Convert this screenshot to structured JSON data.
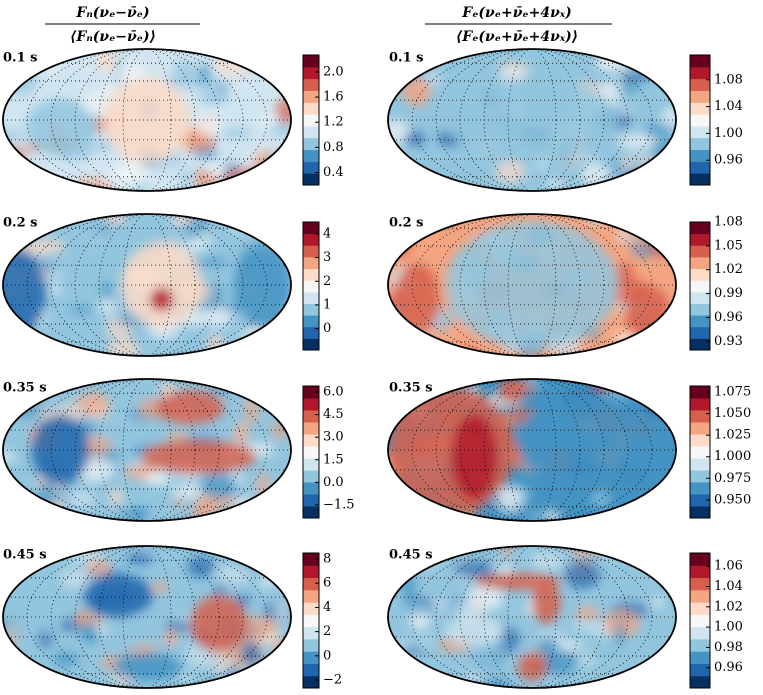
{
  "column_titles": [
    {
      "numerator": "Fₙ(νₑ−ν̄ₑ)",
      "denominator": "⟨Fₙ(νₑ−ν̄ₑ)⟩"
    },
    {
      "numerator": "Fₑ(νₑ+ν̄ₑ+4νₓ)",
      "denominator": "⟨Fₑ(νₑ+ν̄ₑ+4νₓ)⟩"
    }
  ],
  "chart_data": [
    {
      "type": "map",
      "label": "0.1 s",
      "clim": [
        0.2,
        2.27
      ],
      "cticks": [
        0.4,
        0.8,
        1.2,
        1.6,
        {
          "value": 2,
          "label": "2.0"
        }
      ]
    },
    {
      "type": "map",
      "label": "0.1 s",
      "clim": [
        0.923,
        1.117
      ],
      "cticks": [
        0.96,
        {
          "value": 1,
          "label": "1.00"
        },
        1.04,
        1.08
      ]
    },
    {
      "type": "map",
      "label": "0.2 s",
      "clim": [
        -0.9,
        4.5
      ],
      "cticks": [
        0,
        1,
        2,
        3,
        4
      ]
    },
    {
      "type": "map",
      "label": "0.2 s",
      "clim": [
        0.919,
        1.08
      ],
      "cticks": [
        0.93,
        0.96,
        0.99,
        1.02,
        1.05,
        1.08
      ]
    },
    {
      "type": "map",
      "label": "0.35 s",
      "clim": [
        -2.37,
        6.4
      ],
      "cticks": [
        {
          "value": -1.5,
          "label": "−1.5"
        },
        {
          "value": 0,
          "label": "0.0"
        },
        1.5,
        {
          "value": 3,
          "label": "3.0"
        },
        4.5,
        {
          "value": 6,
          "label": "6.0"
        }
      ]
    },
    {
      "type": "map",
      "label": "0.35 s",
      "clim": [
        0.929,
        1.082
      ],
      "cticks": [
        {
          "value": 0.95,
          "label": "0.950"
        },
        0.975,
        {
          "value": 1,
          "label": "1.000"
        },
        1.025,
        {
          "value": 1.05,
          "label": "1.050"
        },
        1.075
      ]
    },
    {
      "type": "map",
      "label": "0.45 s",
      "clim": [
        -2.66,
        8.5
      ],
      "cticks": [
        {
          "value": -2,
          "label": "−2"
        },
        0,
        2,
        4,
        6,
        8
      ]
    },
    {
      "type": "map",
      "label": "0.45 s",
      "clim": [
        0.94,
        1.073
      ],
      "cticks": [
        0.96,
        0.98,
        {
          "value": 1,
          "label": "1.00"
        },
        1.02,
        1.04,
        1.06
      ]
    }
  ]
}
